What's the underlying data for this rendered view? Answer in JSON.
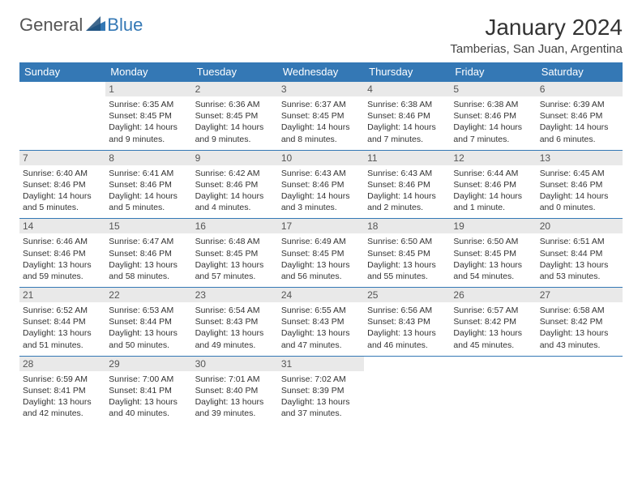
{
  "logo": {
    "part1": "General",
    "part2": "Blue"
  },
  "title": "January 2024",
  "location": "Tamberias, San Juan, Argentina",
  "colors": {
    "header_bg": "#3478b5",
    "header_text": "#ffffff",
    "daynum_bg": "#e9e9e9",
    "row_divider": "#3478b5",
    "page_bg": "#ffffff",
    "body_text": "#333333"
  },
  "weekdays": [
    "Sunday",
    "Monday",
    "Tuesday",
    "Wednesday",
    "Thursday",
    "Friday",
    "Saturday"
  ],
  "weeks": [
    {
      "nums": [
        "",
        "1",
        "2",
        "3",
        "4",
        "5",
        "6"
      ],
      "cells": [
        null,
        {
          "sunrise": "Sunrise: 6:35 AM",
          "sunset": "Sunset: 8:45 PM",
          "daylight": "Daylight: 14 hours and 9 minutes."
        },
        {
          "sunrise": "Sunrise: 6:36 AM",
          "sunset": "Sunset: 8:45 PM",
          "daylight": "Daylight: 14 hours and 9 minutes."
        },
        {
          "sunrise": "Sunrise: 6:37 AM",
          "sunset": "Sunset: 8:45 PM",
          "daylight": "Daylight: 14 hours and 8 minutes."
        },
        {
          "sunrise": "Sunrise: 6:38 AM",
          "sunset": "Sunset: 8:46 PM",
          "daylight": "Daylight: 14 hours and 7 minutes."
        },
        {
          "sunrise": "Sunrise: 6:38 AM",
          "sunset": "Sunset: 8:46 PM",
          "daylight": "Daylight: 14 hours and 7 minutes."
        },
        {
          "sunrise": "Sunrise: 6:39 AM",
          "sunset": "Sunset: 8:46 PM",
          "daylight": "Daylight: 14 hours and 6 minutes."
        }
      ]
    },
    {
      "nums": [
        "7",
        "8",
        "9",
        "10",
        "11",
        "12",
        "13"
      ],
      "cells": [
        {
          "sunrise": "Sunrise: 6:40 AM",
          "sunset": "Sunset: 8:46 PM",
          "daylight": "Daylight: 14 hours and 5 minutes."
        },
        {
          "sunrise": "Sunrise: 6:41 AM",
          "sunset": "Sunset: 8:46 PM",
          "daylight": "Daylight: 14 hours and 5 minutes."
        },
        {
          "sunrise": "Sunrise: 6:42 AM",
          "sunset": "Sunset: 8:46 PM",
          "daylight": "Daylight: 14 hours and 4 minutes."
        },
        {
          "sunrise": "Sunrise: 6:43 AM",
          "sunset": "Sunset: 8:46 PM",
          "daylight": "Daylight: 14 hours and 3 minutes."
        },
        {
          "sunrise": "Sunrise: 6:43 AM",
          "sunset": "Sunset: 8:46 PM",
          "daylight": "Daylight: 14 hours and 2 minutes."
        },
        {
          "sunrise": "Sunrise: 6:44 AM",
          "sunset": "Sunset: 8:46 PM",
          "daylight": "Daylight: 14 hours and 1 minute."
        },
        {
          "sunrise": "Sunrise: 6:45 AM",
          "sunset": "Sunset: 8:46 PM",
          "daylight": "Daylight: 14 hours and 0 minutes."
        }
      ]
    },
    {
      "nums": [
        "14",
        "15",
        "16",
        "17",
        "18",
        "19",
        "20"
      ],
      "cells": [
        {
          "sunrise": "Sunrise: 6:46 AM",
          "sunset": "Sunset: 8:46 PM",
          "daylight": "Daylight: 13 hours and 59 minutes."
        },
        {
          "sunrise": "Sunrise: 6:47 AM",
          "sunset": "Sunset: 8:46 PM",
          "daylight": "Daylight: 13 hours and 58 minutes."
        },
        {
          "sunrise": "Sunrise: 6:48 AM",
          "sunset": "Sunset: 8:45 PM",
          "daylight": "Daylight: 13 hours and 57 minutes."
        },
        {
          "sunrise": "Sunrise: 6:49 AM",
          "sunset": "Sunset: 8:45 PM",
          "daylight": "Daylight: 13 hours and 56 minutes."
        },
        {
          "sunrise": "Sunrise: 6:50 AM",
          "sunset": "Sunset: 8:45 PM",
          "daylight": "Daylight: 13 hours and 55 minutes."
        },
        {
          "sunrise": "Sunrise: 6:50 AM",
          "sunset": "Sunset: 8:45 PM",
          "daylight": "Daylight: 13 hours and 54 minutes."
        },
        {
          "sunrise": "Sunrise: 6:51 AM",
          "sunset": "Sunset: 8:44 PM",
          "daylight": "Daylight: 13 hours and 53 minutes."
        }
      ]
    },
    {
      "nums": [
        "21",
        "22",
        "23",
        "24",
        "25",
        "26",
        "27"
      ],
      "cells": [
        {
          "sunrise": "Sunrise: 6:52 AM",
          "sunset": "Sunset: 8:44 PM",
          "daylight": "Daylight: 13 hours and 51 minutes."
        },
        {
          "sunrise": "Sunrise: 6:53 AM",
          "sunset": "Sunset: 8:44 PM",
          "daylight": "Daylight: 13 hours and 50 minutes."
        },
        {
          "sunrise": "Sunrise: 6:54 AM",
          "sunset": "Sunset: 8:43 PM",
          "daylight": "Daylight: 13 hours and 49 minutes."
        },
        {
          "sunrise": "Sunrise: 6:55 AM",
          "sunset": "Sunset: 8:43 PM",
          "daylight": "Daylight: 13 hours and 47 minutes."
        },
        {
          "sunrise": "Sunrise: 6:56 AM",
          "sunset": "Sunset: 8:43 PM",
          "daylight": "Daylight: 13 hours and 46 minutes."
        },
        {
          "sunrise": "Sunrise: 6:57 AM",
          "sunset": "Sunset: 8:42 PM",
          "daylight": "Daylight: 13 hours and 45 minutes."
        },
        {
          "sunrise": "Sunrise: 6:58 AM",
          "sunset": "Sunset: 8:42 PM",
          "daylight": "Daylight: 13 hours and 43 minutes."
        }
      ]
    },
    {
      "nums": [
        "28",
        "29",
        "30",
        "31",
        "",
        "",
        ""
      ],
      "cells": [
        {
          "sunrise": "Sunrise: 6:59 AM",
          "sunset": "Sunset: 8:41 PM",
          "daylight": "Daylight: 13 hours and 42 minutes."
        },
        {
          "sunrise": "Sunrise: 7:00 AM",
          "sunset": "Sunset: 8:41 PM",
          "daylight": "Daylight: 13 hours and 40 minutes."
        },
        {
          "sunrise": "Sunrise: 7:01 AM",
          "sunset": "Sunset: 8:40 PM",
          "daylight": "Daylight: 13 hours and 39 minutes."
        },
        {
          "sunrise": "Sunrise: 7:02 AM",
          "sunset": "Sunset: 8:39 PM",
          "daylight": "Daylight: 13 hours and 37 minutes."
        },
        null,
        null,
        null
      ]
    }
  ]
}
